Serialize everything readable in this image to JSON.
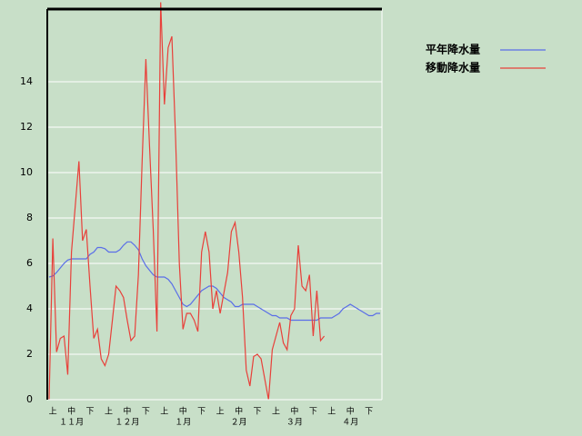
{
  "chart_data": {
    "type": "line",
    "categories": [
      null,
      "上",
      null,
      null,
      null,
      null,
      "中",
      null,
      null,
      null,
      null,
      "下",
      null,
      null,
      null,
      null,
      "上",
      null,
      null,
      null,
      null,
      "中",
      null,
      null,
      null,
      null,
      "下",
      null,
      null,
      null,
      null,
      "上",
      null,
      null,
      null,
      null,
      "中",
      null,
      null,
      null,
      null,
      "下",
      null,
      null,
      null,
      null,
      "上",
      null,
      null,
      null,
      null,
      "中",
      null,
      null,
      null,
      null,
      "下",
      null,
      null,
      null,
      null,
      "上",
      null,
      null,
      null,
      null,
      "中",
      null,
      null,
      null,
      null,
      "下",
      null,
      null,
      null,
      null,
      "上",
      null,
      null,
      null,
      null,
      "中",
      null,
      null,
      null,
      null,
      "下",
      null,
      null,
      null
    ],
    "months": [
      "１１月",
      "１２月",
      "１月",
      "２月",
      "３月",
      "４月"
    ],
    "series": [
      {
        "name": "平年降水量",
        "color": "#5a6ee8",
        "values": [
          5.4,
          5.45,
          5.6,
          5.8,
          6.0,
          6.15,
          6.2,
          6.2,
          6.2,
          6.2,
          6.2,
          6.4,
          6.5,
          6.7,
          6.7,
          6.65,
          6.5,
          6.5,
          6.5,
          6.6,
          6.8,
          6.95,
          6.95,
          6.8,
          6.6,
          6.2,
          5.9,
          5.7,
          5.5,
          5.4,
          5.4,
          5.4,
          5.3,
          5.1,
          4.8,
          4.5,
          4.2,
          4.1,
          4.2,
          4.4,
          4.6,
          4.8,
          4.9,
          5.0,
          5.0,
          4.9,
          4.7,
          4.5,
          4.4,
          4.3,
          4.1,
          4.1,
          4.2,
          4.2,
          4.2,
          4.2,
          4.1,
          4.0,
          3.9,
          3.8,
          3.7,
          3.7,
          3.6,
          3.6,
          3.6,
          3.5,
          3.5,
          3.5,
          3.5,
          3.5,
          3.5,
          3.5,
          3.5,
          3.6,
          3.6,
          3.6,
          3.6,
          3.7,
          3.8,
          4.0,
          4.1,
          4.2,
          4.1,
          4.0,
          3.9,
          3.8,
          3.7,
          3.7,
          3.8,
          3.8
        ]
      },
      {
        "name": "移動降水量",
        "color": "#e8403a",
        "values": [
          0,
          7.1,
          2.1,
          2.7,
          2.8,
          1.1,
          6.5,
          8.5,
          10.5,
          7.0,
          7.5,
          5.0,
          2.7,
          3.1,
          1.8,
          1.5,
          2.0,
          3.5,
          5.0,
          4.8,
          4.5,
          3.5,
          2.6,
          2.8,
          5.5,
          10.5,
          15.0,
          11.2,
          7.5,
          3.0,
          17.5,
          13.0,
          15.5,
          16.0,
          11.5,
          6.0,
          3.1,
          3.8,
          3.8,
          3.5,
          3.0,
          6.5,
          7.4,
          6.5,
          4.0,
          4.8,
          3.8,
          4.7,
          5.6,
          7.4,
          7.8,
          6.5,
          4.5,
          1.3,
          0.6,
          1.9,
          2.0,
          1.8,
          0.9,
          0,
          2.2,
          2.8,
          3.4,
          2.5,
          2.2,
          3.7,
          4.0,
          6.8,
          5.0,
          4.8,
          5.5,
          2.8,
          4.8,
          2.6,
          2.8,
          null,
          null,
          null,
          null,
          null,
          null,
          null,
          null,
          null,
          null,
          null,
          null,
          null,
          null,
          null
        ]
      }
    ],
    "ylim": [
      0,
      17.2
    ],
    "yticks": [
      0,
      2,
      4,
      6,
      8,
      10,
      12,
      14
    ],
    "grid": true
  }
}
